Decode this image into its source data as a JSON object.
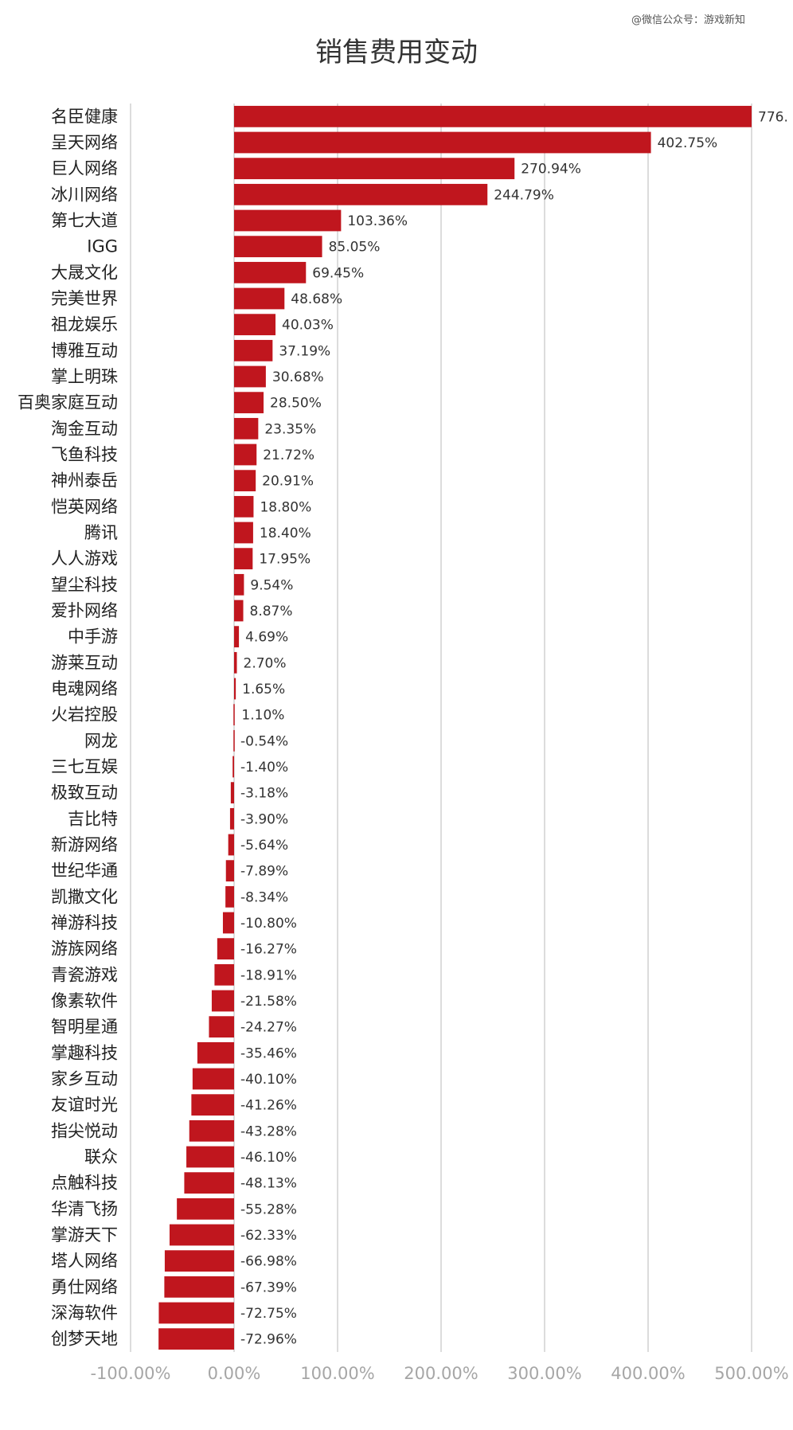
{
  "watermark": "@微信公众号：游戏新知",
  "chart_data": {
    "type": "bar",
    "orientation": "horizontal",
    "title": "销售费用变动",
    "xlabel": "",
    "ylabel": "",
    "xlim": [
      -100,
      500
    ],
    "grid": true,
    "legend": "none",
    "bar_color": "#c0161e",
    "x_tick_labels": [
      "-100.00%",
      "0.00%",
      "100.00%",
      "200.00%",
      "300.00%",
      "400.00%",
      "500.00%"
    ],
    "x_ticks": [
      -100,
      0,
      100,
      200,
      300,
      400,
      500
    ],
    "categories": [
      "名臣健康",
      "呈天网络",
      "巨人网络",
      "冰川网络",
      "第七大道",
      "IGG",
      "大晟文化",
      "完美世界",
      "祖龙娱乐",
      "博雅互动",
      "掌上明珠",
      "百奥家庭互动",
      "淘金互动",
      "飞鱼科技",
      "神州泰岳",
      "恺英网络",
      "腾讯",
      "人人游戏",
      "望尘科技",
      "爱扑网络",
      "中手游",
      "游莱互动",
      "电魂网络",
      "火岩控股",
      "网龙",
      "三七互娱",
      "极致互动",
      "吉比特",
      "新游网络",
      "世纪华通",
      "凯撒文化",
      "禅游科技",
      "游族网络",
      "青瓷游戏",
      "像素软件",
      "智明星通",
      "掌趣科技",
      "家乡互动",
      "友谊时光",
      "指尖悦动",
      "联众",
      "点触科技",
      "华清飞扬",
      "掌游天下",
      "塔人网络",
      "勇仕网络",
      "深海软件",
      "创梦天地"
    ],
    "values": [
      776,
      402.75,
      270.94,
      244.79,
      103.36,
      85.05,
      69.45,
      48.68,
      40.03,
      37.19,
      30.68,
      28.5,
      23.35,
      21.72,
      20.91,
      18.8,
      18.4,
      17.95,
      9.54,
      8.87,
      4.69,
      2.7,
      1.65,
      1.1,
      -0.54,
      -1.4,
      -3.18,
      -3.9,
      -5.64,
      -7.89,
      -8.34,
      -10.8,
      -16.27,
      -18.91,
      -21.58,
      -24.27,
      -35.46,
      -40.1,
      -41.26,
      -43.28,
      -46.1,
      -48.13,
      -55.28,
      -62.33,
      -66.98,
      -67.39,
      -72.75,
      -72.96
    ],
    "data_labels": [
      "776.",
      "402.75%",
      "270.94%",
      "244.79%",
      "103.36%",
      "85.05%",
      "69.45%",
      "48.68%",
      "40.03%",
      "37.19%",
      "30.68%",
      "28.50%",
      "23.35%",
      "21.72%",
      "20.91%",
      "18.80%",
      "18.40%",
      "17.95%",
      "9.54%",
      "8.87%",
      "4.69%",
      "2.70%",
      "1.65%",
      "1.10%",
      "-0.54%",
      "-1.40%",
      "-3.18%",
      "-3.90%",
      "-5.64%",
      "-7.89%",
      "-8.34%",
      "-10.80%",
      "-16.27%",
      "-18.91%",
      "-21.58%",
      "-24.27%",
      "-35.46%",
      "-40.10%",
      "-41.26%",
      "-43.28%",
      "-46.10%",
      "-48.13%",
      "-55.28%",
      "-62.33%",
      "-66.98%",
      "-67.39%",
      "-72.75%",
      "-72.96%"
    ]
  }
}
